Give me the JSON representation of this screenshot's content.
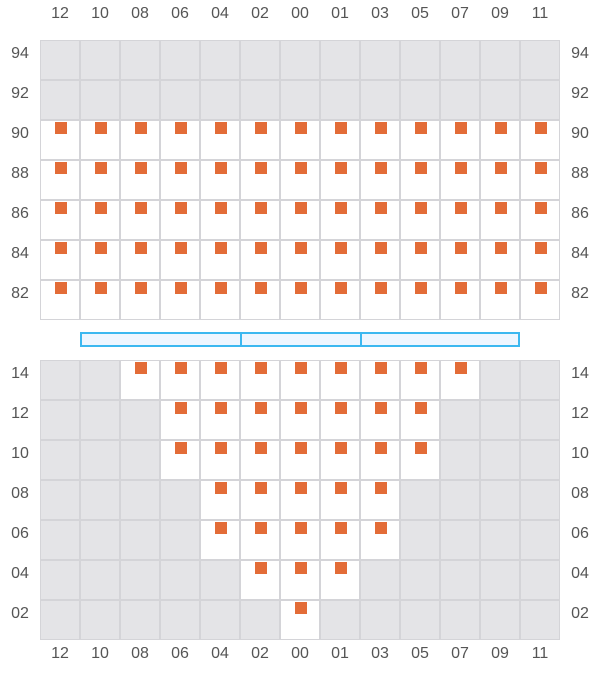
{
  "columns": [
    "12",
    "10",
    "08",
    "06",
    "04",
    "02",
    "00",
    "01",
    "03",
    "05",
    "07",
    "09",
    "11"
  ],
  "colors": {
    "seat": "#e36c37",
    "unavailable": "#e4e4e7",
    "available": "#ffffff",
    "stage": "#3cb8f0"
  },
  "top_section": {
    "rows": [
      {
        "label": "94",
        "seats": []
      },
      {
        "label": "92",
        "seats": []
      },
      {
        "label": "90",
        "seats": [
          "12",
          "10",
          "08",
          "06",
          "04",
          "02",
          "00",
          "01",
          "03",
          "05",
          "07",
          "09",
          "11"
        ]
      },
      {
        "label": "88",
        "seats": [
          "12",
          "10",
          "08",
          "06",
          "04",
          "02",
          "00",
          "01",
          "03",
          "05",
          "07",
          "09",
          "11"
        ]
      },
      {
        "label": "86",
        "seats": [
          "12",
          "10",
          "08",
          "06",
          "04",
          "02",
          "00",
          "01",
          "03",
          "05",
          "07",
          "09",
          "11"
        ]
      },
      {
        "label": "84",
        "seats": [
          "12",
          "10",
          "08",
          "06",
          "04",
          "02",
          "00",
          "01",
          "03",
          "05",
          "07",
          "09",
          "11"
        ]
      },
      {
        "label": "82",
        "seats": [
          "12",
          "10",
          "08",
          "06",
          "04",
          "02",
          "00",
          "01",
          "03",
          "05",
          "07",
          "09",
          "11"
        ]
      }
    ]
  },
  "divider_segments": 3,
  "bottom_section": {
    "rows": [
      {
        "label": "14",
        "seats": [
          "08",
          "06",
          "04",
          "02",
          "00",
          "01",
          "03",
          "05",
          "07"
        ]
      },
      {
        "label": "12",
        "seats": [
          "06",
          "04",
          "02",
          "00",
          "01",
          "03",
          "05"
        ]
      },
      {
        "label": "10",
        "seats": [
          "06",
          "04",
          "02",
          "00",
          "01",
          "03",
          "05"
        ]
      },
      {
        "label": "08",
        "seats": [
          "04",
          "02",
          "00",
          "01",
          "03"
        ]
      },
      {
        "label": "06",
        "seats": [
          "04",
          "02",
          "00",
          "01",
          "03"
        ]
      },
      {
        "label": "04",
        "seats": [
          "02",
          "00",
          "01"
        ]
      },
      {
        "label": "02",
        "seats": [
          "00"
        ]
      }
    ]
  }
}
